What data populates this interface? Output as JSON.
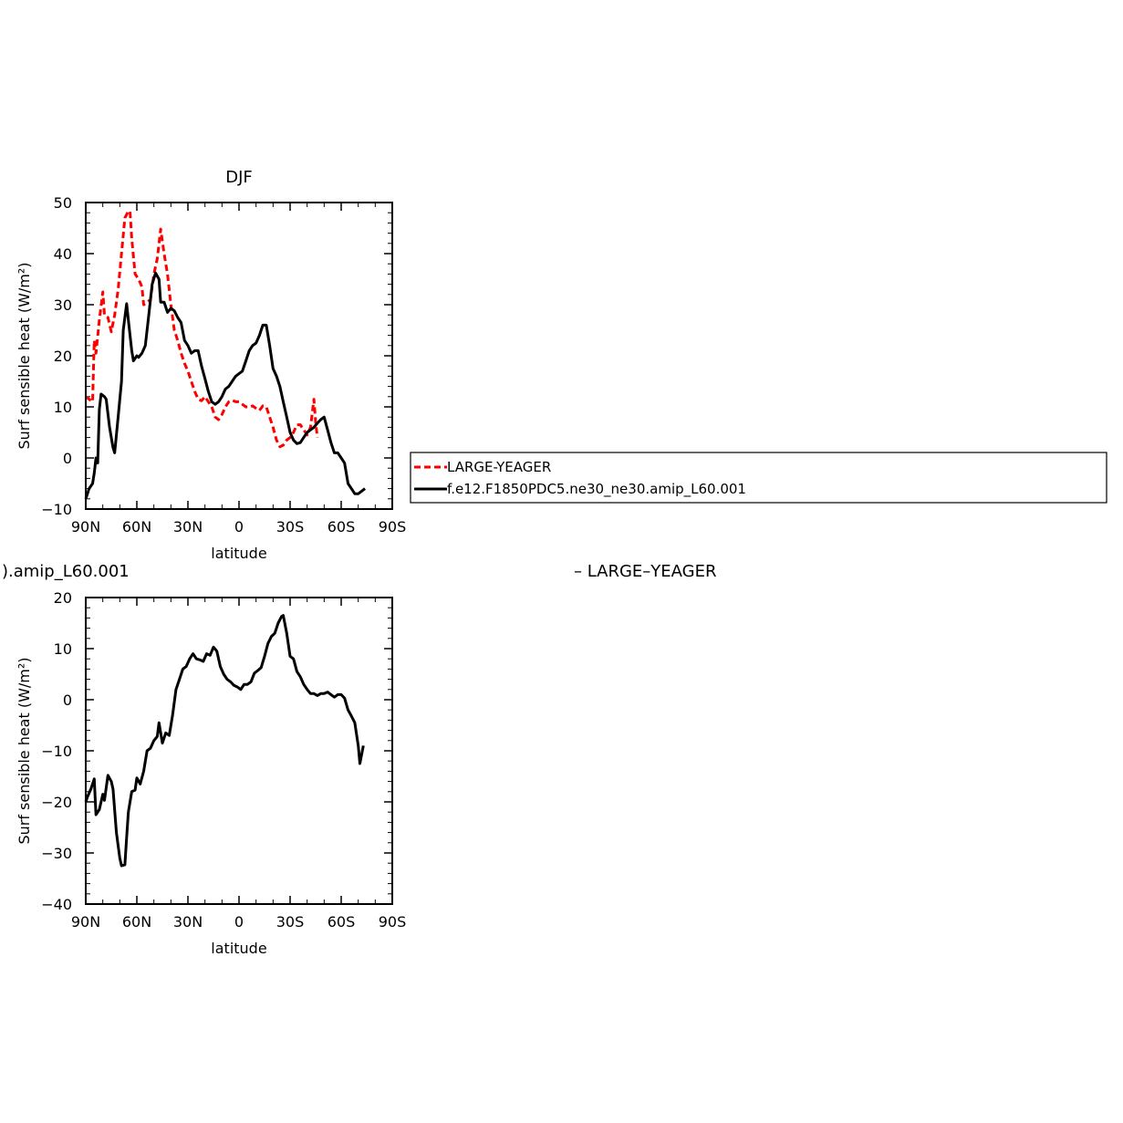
{
  "chart_data": [
    {
      "type": "line",
      "title": "DJF",
      "xlabel": "latitude",
      "ylabel": "Surf sensible heat (W/m²)",
      "xlim": [
        90,
        -90
      ],
      "ylim": [
        -10,
        50
      ],
      "xticks": [
        {
          "value": 90,
          "label": "90N"
        },
        {
          "value": 60,
          "label": "60N"
        },
        {
          "value": 30,
          "label": "30N"
        },
        {
          "value": 0,
          "label": "0"
        },
        {
          "value": -30,
          "label": "30S"
        },
        {
          "value": -60,
          "label": "60S"
        },
        {
          "value": -90,
          "label": "90S"
        }
      ],
      "yticks": [
        -10,
        0,
        10,
        20,
        30,
        40,
        50
      ],
      "series": [
        {
          "name": "LARGE-YEAGER",
          "color": "#ff0000",
          "dash": "dashed",
          "points": [
            [
              90,
              12
            ],
            [
              88,
              11.5
            ],
            [
              86,
              11
            ],
            [
              85,
              23
            ],
            [
              84,
              20.5
            ],
            [
              82,
              27
            ],
            [
              80,
              32.5
            ],
            [
              79,
              28
            ],
            [
              77,
              27.5
            ],
            [
              75,
              24.7
            ],
            [
              73,
              28
            ],
            [
              71,
              33
            ],
            [
              69,
              40
            ],
            [
              67,
              47
            ],
            [
              65,
              48.3
            ],
            [
              64,
              48.3
            ],
            [
              63,
              43
            ],
            [
              61,
              36
            ],
            [
              59,
              35
            ],
            [
              57,
              33.5
            ],
            [
              56,
              30
            ],
            [
              54,
              30.5
            ],
            [
              52,
              31
            ],
            [
              50,
              36
            ],
            [
              48,
              39
            ],
            [
              46,
              44.8
            ],
            [
              44,
              40
            ],
            [
              42,
              36
            ],
            [
              40,
              30
            ],
            [
              38,
              25
            ],
            [
              36,
              23
            ],
            [
              34,
              20.5
            ],
            [
              32,
              18.5
            ],
            [
              30,
              17
            ],
            [
              28,
              15
            ],
            [
              26,
              13
            ],
            [
              24,
              11.5
            ],
            [
              22,
              11.2
            ],
            [
              20,
              12
            ],
            [
              18,
              11
            ],
            [
              16,
              10
            ],
            [
              14,
              8
            ],
            [
              12,
              7.5
            ],
            [
              10,
              8.5
            ],
            [
              8,
              10
            ],
            [
              6,
              11
            ],
            [
              4,
              11.3
            ],
            [
              2,
              11
            ],
            [
              0,
              11
            ],
            [
              -2,
              10.5
            ],
            [
              -4,
              10
            ],
            [
              -6,
              10
            ],
            [
              -8,
              10.2
            ],
            [
              -10,
              9.7
            ],
            [
              -12,
              9.3
            ],
            [
              -14,
              10.2
            ],
            [
              -16,
              10
            ],
            [
              -18,
              8
            ],
            [
              -20,
              6
            ],
            [
              -22,
              3.5
            ],
            [
              -24,
              2.2
            ],
            [
              -26,
              2.5
            ],
            [
              -28,
              3.5
            ],
            [
              -30,
              4
            ],
            [
              -32,
              5
            ],
            [
              -34,
              6.5
            ],
            [
              -36,
              6.5
            ],
            [
              -38,
              5.5
            ],
            [
              -40,
              4.5
            ],
            [
              -42,
              6
            ],
            [
              -44,
              11.5
            ],
            [
              -45,
              7
            ],
            [
              -46,
              4
            ]
          ]
        },
        {
          "name": "f.e12.F1850PDC5.ne30_ne30.amip_L60.001",
          "color": "#000000",
          "dash": "solid",
          "points": [
            [
              90,
              -8
            ],
            [
              89,
              -7
            ],
            [
              88,
              -6
            ],
            [
              86,
              -5
            ],
            [
              85,
              -3
            ],
            [
              84,
              0
            ],
            [
              83,
              -1
            ],
            [
              82,
              9.5
            ],
            [
              81,
              12.5
            ],
            [
              79,
              12
            ],
            [
              78,
              11.5
            ],
            [
              76,
              6
            ],
            [
              74,
              2
            ],
            [
              73,
              1
            ],
            [
              71,
              8
            ],
            [
              69,
              15
            ],
            [
              68,
              25
            ],
            [
              66,
              30.2
            ],
            [
              65,
              27
            ],
            [
              63,
              21
            ],
            [
              62,
              19
            ],
            [
              60,
              20
            ],
            [
              59,
              19.7
            ],
            [
              57,
              20.5
            ],
            [
              55,
              22
            ],
            [
              53,
              28
            ],
            [
              51,
              34
            ],
            [
              49,
              36.2
            ],
            [
              47,
              35
            ],
            [
              46,
              30.5
            ],
            [
              44,
              30.5
            ],
            [
              42,
              28.5
            ],
            [
              40,
              29.3
            ],
            [
              38,
              28.8
            ],
            [
              36,
              27.5
            ],
            [
              34,
              26.5
            ],
            [
              32,
              23
            ],
            [
              30,
              22
            ],
            [
              28,
              20.5
            ],
            [
              26,
              21
            ],
            [
              24,
              21
            ],
            [
              22,
              18
            ],
            [
              20,
              15.5
            ],
            [
              18,
              13
            ],
            [
              16,
              11
            ],
            [
              14,
              10.5
            ],
            [
              12,
              11
            ],
            [
              10,
              12
            ],
            [
              8,
              13.5
            ],
            [
              6,
              14
            ],
            [
              4,
              15
            ],
            [
              2,
              16
            ],
            [
              0,
              16.5
            ],
            [
              -2,
              17
            ],
            [
              -4,
              19
            ],
            [
              -6,
              21
            ],
            [
              -8,
              22
            ],
            [
              -10,
              22.5
            ],
            [
              -12,
              24
            ],
            [
              -14,
              26
            ],
            [
              -16,
              26
            ],
            [
              -18,
              22
            ],
            [
              -20,
              17.5
            ],
            [
              -22,
              16
            ],
            [
              -24,
              14
            ],
            [
              -26,
              11
            ],
            [
              -28,
              8
            ],
            [
              -30,
              5
            ],
            [
              -32,
              3.5
            ],
            [
              -34,
              2.8
            ],
            [
              -36,
              3
            ],
            [
              -38,
              4
            ],
            [
              -40,
              5
            ],
            [
              -42,
              5.5
            ],
            [
              -44,
              6
            ],
            [
              -46,
              6.8
            ],
            [
              -48,
              7.5
            ],
            [
              -50,
              8
            ],
            [
              -52,
              5.5
            ],
            [
              -54,
              3
            ],
            [
              -56,
              1
            ],
            [
              -58,
              1
            ],
            [
              -60,
              0
            ],
            [
              -62,
              -1
            ],
            [
              -64,
              -5
            ],
            [
              -66,
              -6
            ],
            [
              -68,
              -7
            ],
            [
              -70,
              -7
            ],
            [
              -72,
              -6.5
            ],
            [
              -74,
              -6
            ]
          ]
        }
      ],
      "legend": "right",
      "legend_entries": [
        "LARGE-YEAGER",
        "f.e12.F1850PDC5.ne30_ne30.amip_L60.001"
      ]
    },
    {
      "type": "line",
      "title": "",
      "title_fragments": {
        "left": ").amip_L60.001",
        "right": "– LARGE–YEAGER"
      },
      "xlabel": "latitude",
      "ylabel": "Surf sensible heat (W/m²)",
      "xlim": [
        90,
        -90
      ],
      "ylim": [
        -40,
        20
      ],
      "xticks": [
        {
          "value": 90,
          "label": "90N"
        },
        {
          "value": 60,
          "label": "60N"
        },
        {
          "value": 30,
          "label": "30N"
        },
        {
          "value": 0,
          "label": "0"
        },
        {
          "value": -30,
          "label": "30S"
        },
        {
          "value": -60,
          "label": "60S"
        },
        {
          "value": -90,
          "label": "90S"
        }
      ],
      "yticks": [
        -40,
        -30,
        -20,
        -10,
        0,
        10,
        20
      ],
      "series": [
        {
          "color": "#000000",
          "dash": "solid",
          "points": [
            [
              90,
              -20
            ],
            [
              89,
              -19
            ],
            [
              87,
              -17.5
            ],
            [
              85,
              -15.5
            ],
            [
              84,
              -22.5
            ],
            [
              82,
              -21.5
            ],
            [
              80,
              -18.5
            ],
            [
              79,
              -19.7
            ],
            [
              77,
              -14.8
            ],
            [
              75,
              -16
            ],
            [
              74,
              -17.5
            ],
            [
              72,
              -26
            ],
            [
              70,
              -31
            ],
            [
              69,
              -32.5
            ],
            [
              67,
              -32.3
            ],
            [
              66,
              -27
            ],
            [
              65,
              -22
            ],
            [
              63,
              -18
            ],
            [
              61,
              -17.7
            ],
            [
              60,
              -15.3
            ],
            [
              58,
              -16.5
            ],
            [
              56,
              -14
            ],
            [
              54,
              -10
            ],
            [
              52,
              -9.5
            ],
            [
              50,
              -8
            ],
            [
              48,
              -7.2
            ],
            [
              47,
              -4.5
            ],
            [
              45,
              -8.5
            ],
            [
              43,
              -6.5
            ],
            [
              41,
              -7
            ],
            [
              39,
              -3
            ],
            [
              37,
              2
            ],
            [
              35,
              4
            ],
            [
              33,
              6
            ],
            [
              31,
              6.5
            ],
            [
              29,
              8
            ],
            [
              27,
              9
            ],
            [
              25,
              8
            ],
            [
              23,
              7.8
            ],
            [
              21,
              7.5
            ],
            [
              19,
              9
            ],
            [
              17,
              8.7
            ],
            [
              15,
              10.3
            ],
            [
              13,
              9.5
            ],
            [
              11,
              6.5
            ],
            [
              9,
              5
            ],
            [
              7,
              4
            ],
            [
              5,
              3.5
            ],
            [
              3,
              2.8
            ],
            [
              1,
              2.5
            ],
            [
              -1,
              2
            ],
            [
              -3,
              3
            ],
            [
              -5,
              3
            ],
            [
              -7,
              3.5
            ],
            [
              -9,
              5.2
            ],
            [
              -11,
              5.7
            ],
            [
              -13,
              6.3
            ],
            [
              -15,
              8.5
            ],
            [
              -17,
              11
            ],
            [
              -19,
              12.4
            ],
            [
              -21,
              13
            ],
            [
              -23,
              15
            ],
            [
              -25,
              16.3
            ],
            [
              -26,
              16.5
            ],
            [
              -28,
              13
            ],
            [
              -30,
              8.5
            ],
            [
              -32,
              8
            ],
            [
              -34,
              5.5
            ],
            [
              -36,
              4.5
            ],
            [
              -38,
              3
            ],
            [
              -40,
              2
            ],
            [
              -42,
              1.2
            ],
            [
              -44,
              1.2
            ],
            [
              -46,
              0.8
            ],
            [
              -48,
              1.2
            ],
            [
              -50,
              1.2
            ],
            [
              -52,
              1.5
            ],
            [
              -54,
              1
            ],
            [
              -56,
              0.5
            ],
            [
              -58,
              1
            ],
            [
              -60,
              1
            ],
            [
              -62,
              0.3
            ],
            [
              -64,
              -2
            ],
            [
              -66,
              -3.2
            ],
            [
              -68,
              -4.5
            ],
            [
              -70,
              -9
            ],
            [
              -71,
              -12.5
            ],
            [
              -73,
              -9
            ]
          ]
        }
      ]
    }
  ]
}
